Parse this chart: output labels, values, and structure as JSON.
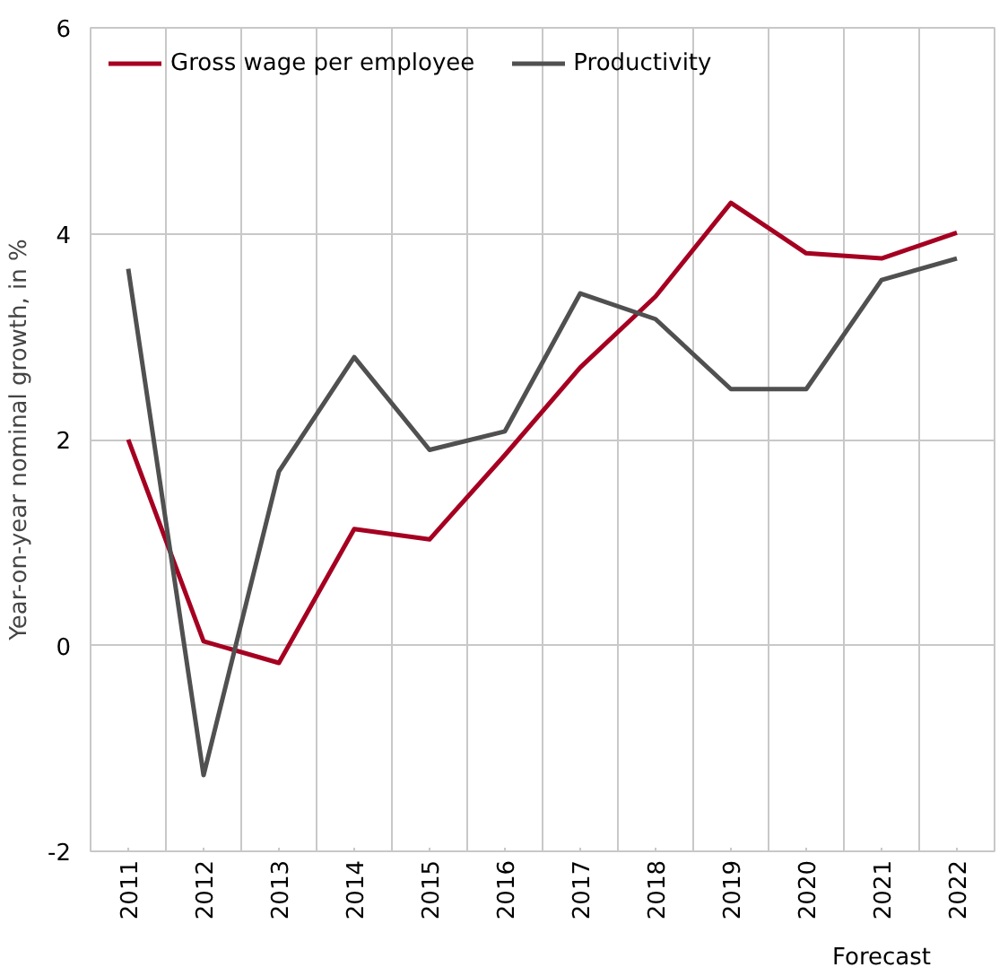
{
  "chart_data": {
    "type": "line",
    "ylabel": "Year-on-year nominal growth, in %",
    "categories": [
      "2011",
      "2012",
      "2013",
      "2014",
      "2015",
      "2016",
      "2017",
      "2018",
      "2019",
      "2020",
      "2021",
      "2022"
    ],
    "series": [
      {
        "name": "Gross wage per employee",
        "color": "#a50021",
        "values": [
          2.0,
          0.04,
          -0.17,
          1.13,
          1.03,
          1.85,
          2.7,
          3.39,
          4.3,
          3.81,
          3.76,
          4.01
        ]
      },
      {
        "name": "Productivity",
        "color": "#505050",
        "values": [
          3.66,
          -1.26,
          1.69,
          2.8,
          1.9,
          2.08,
          3.42,
          3.17,
          2.49,
          2.49,
          3.55,
          3.76
        ]
      }
    ],
    "ylim": [
      -2,
      6
    ],
    "yticks": [
      -2,
      0,
      2,
      4,
      6
    ],
    "grid": true,
    "legend": "top left",
    "marker": "none",
    "line_style": "solid",
    "annotations": [
      "Forecast"
    ]
  }
}
